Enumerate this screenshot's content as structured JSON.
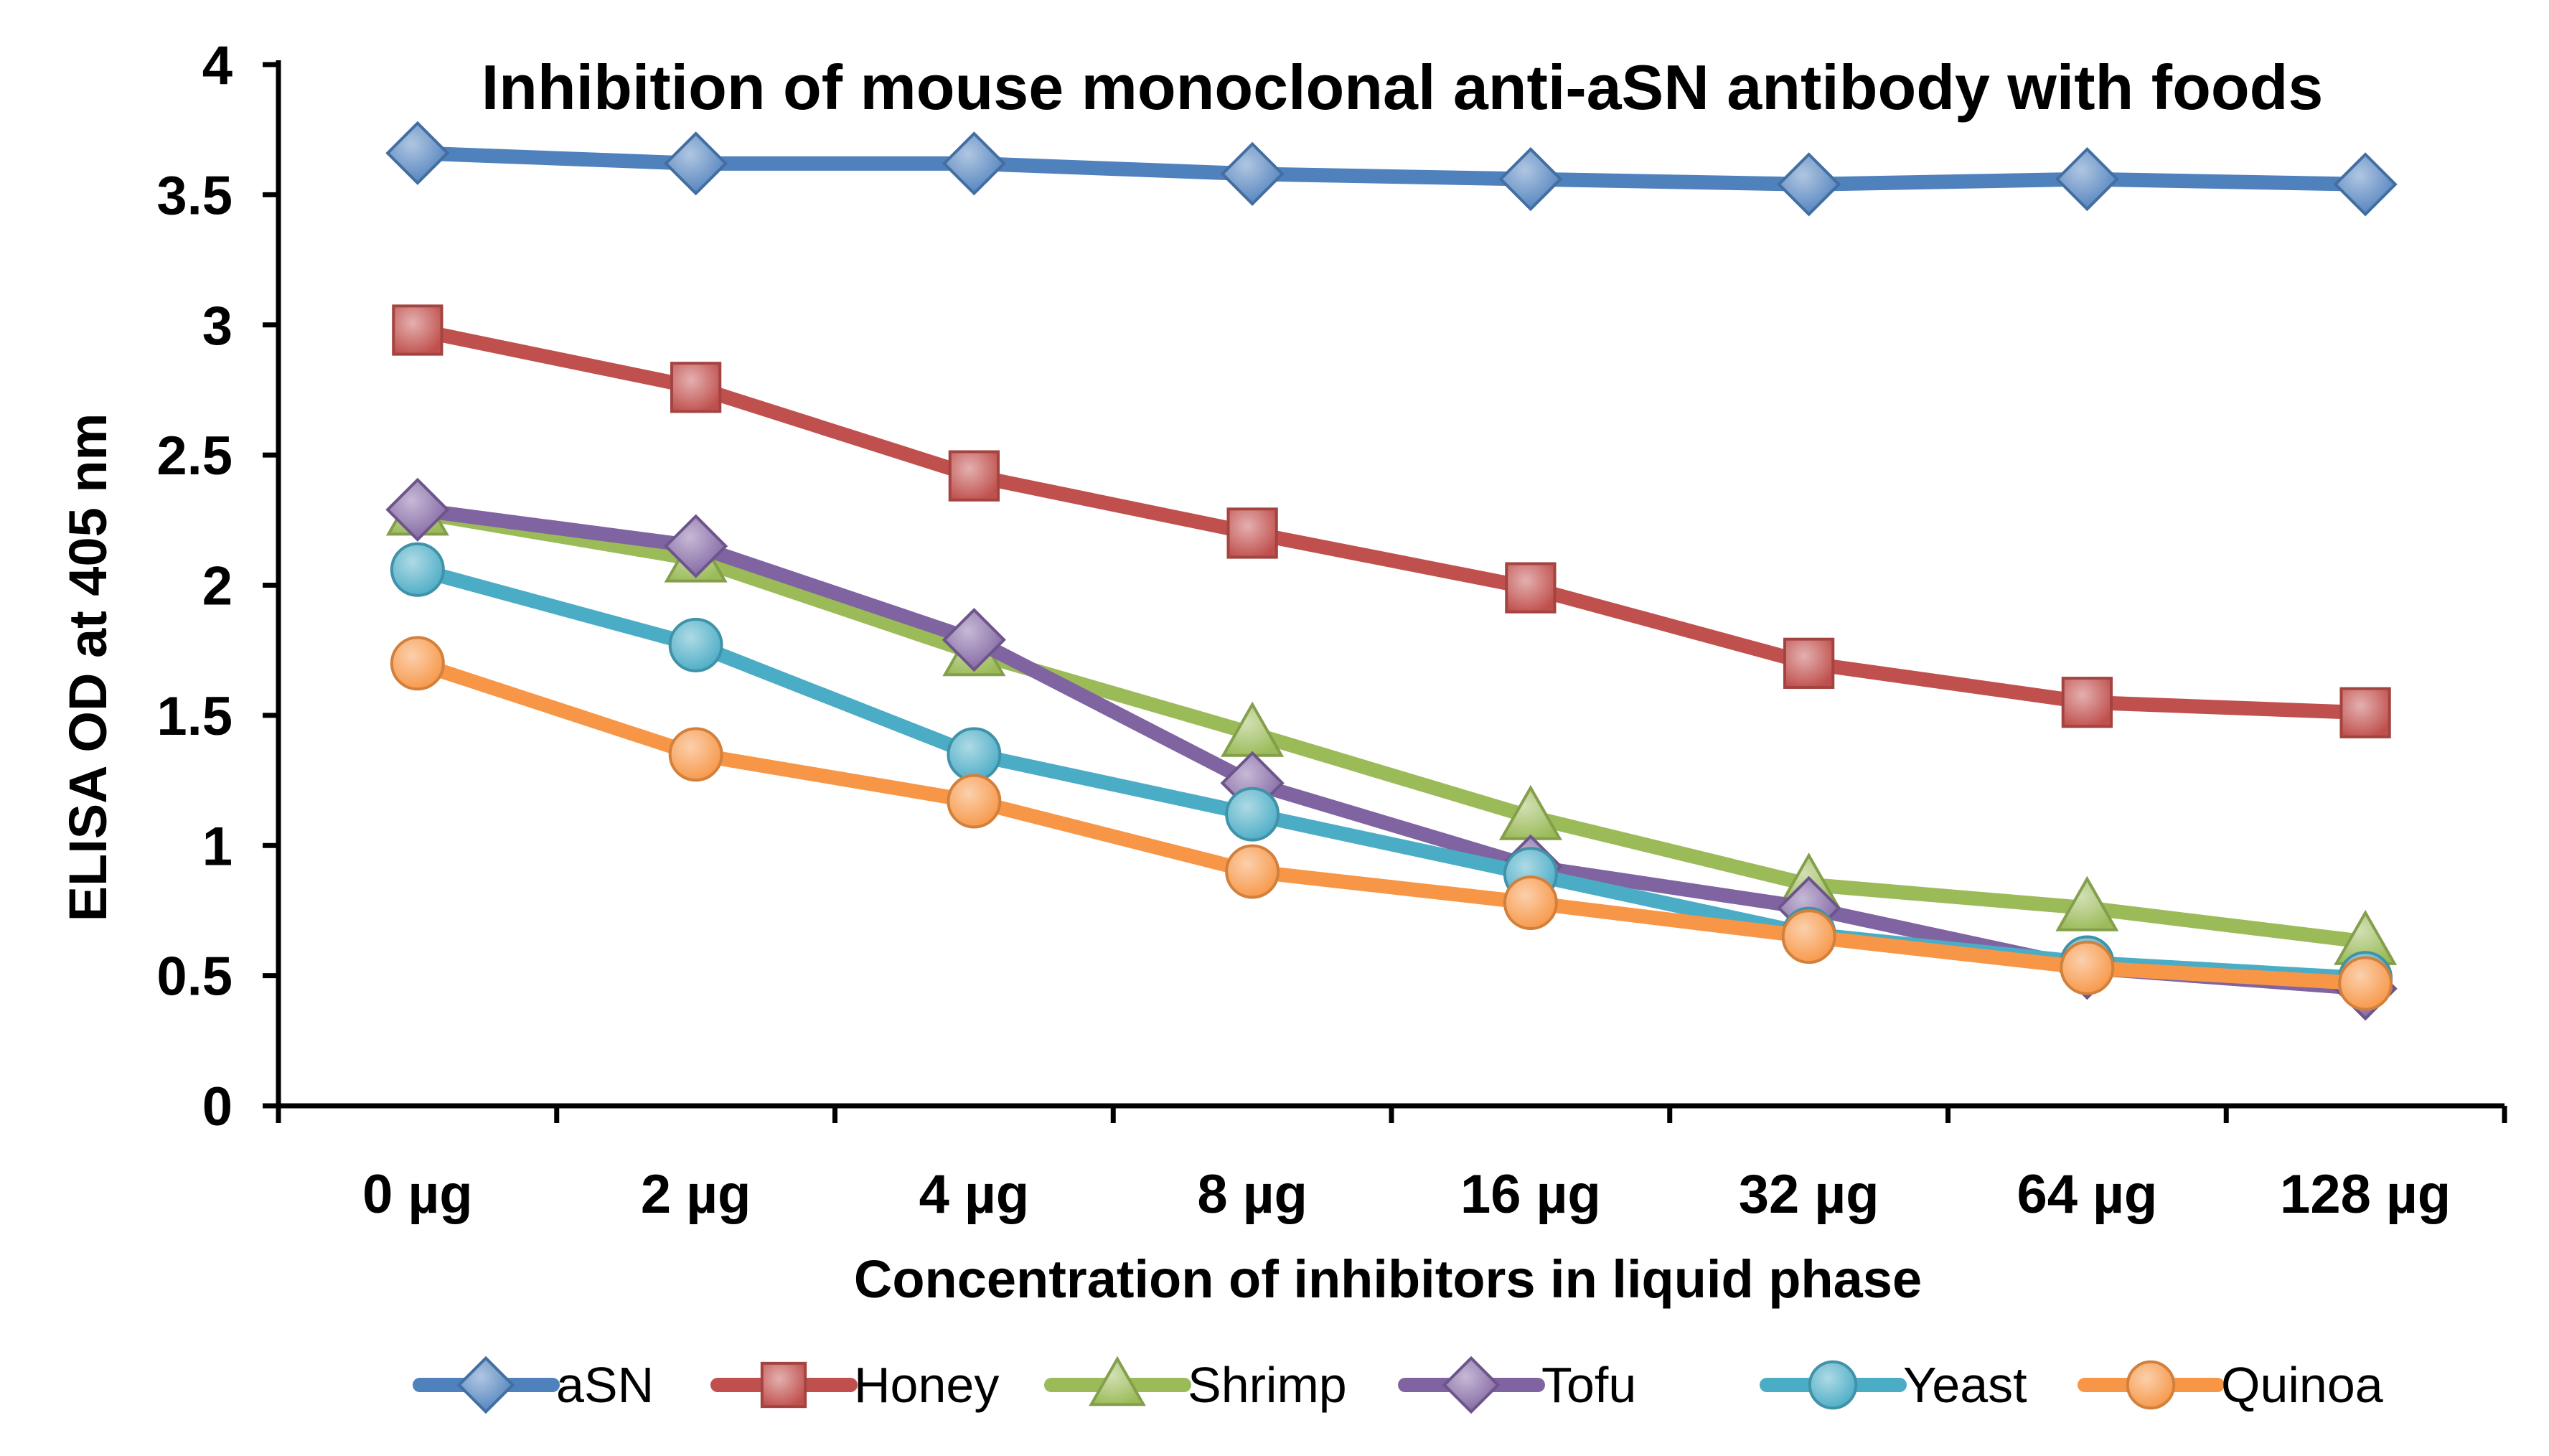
{
  "chart_data": {
    "type": "line",
    "title": "Inhibition of mouse monoclonal anti-aSN antibody with foods",
    "xlabel": "Concentration of inhibitors in liquid phase",
    "ylabel": "ELISA OD at 405 nm",
    "categories": [
      "0 µg",
      "2 µg",
      "4 µg",
      "8 µg",
      "16 µg",
      "32 µg",
      "64 µg",
      "128 µg"
    ],
    "ylim": [
      0,
      4
    ],
    "yticks": [
      0,
      0.5,
      1,
      1.5,
      2,
      2.5,
      3,
      3.5,
      4
    ],
    "ytick_labels": [
      "0",
      "0.5",
      "1",
      "1.5",
      "2",
      "2.5",
      "3",
      "3.5",
      "4"
    ],
    "grid": false,
    "legend_position": "bottom",
    "series": [
      {
        "name": "aSN",
        "marker": "diamond",
        "color": "#4f81bd",
        "values": [
          3.66,
          3.62,
          3.62,
          3.58,
          3.56,
          3.54,
          3.56,
          3.54
        ]
      },
      {
        "name": "Honey",
        "marker": "square",
        "color": "#c0504d",
        "values": [
          2.98,
          2.76,
          2.42,
          2.2,
          1.99,
          1.7,
          1.55,
          1.51
        ]
      },
      {
        "name": "Shrimp",
        "marker": "triangle",
        "color": "#9bbb59",
        "values": [
          2.28,
          2.1,
          1.74,
          1.43,
          1.11,
          0.85,
          0.76,
          0.63
        ]
      },
      {
        "name": "Tofu",
        "marker": "diamond",
        "color": "#8064a2",
        "values": [
          2.29,
          2.15,
          1.79,
          1.24,
          0.92,
          0.76,
          0.53,
          0.45
        ]
      },
      {
        "name": "Yeast",
        "marker": "circle",
        "color": "#4bacc6",
        "values": [
          2.06,
          1.77,
          1.35,
          1.12,
          0.89,
          0.66,
          0.55,
          0.49
        ]
      },
      {
        "name": "Quinoa",
        "marker": "circle",
        "color": "#f79646",
        "values": [
          1.7,
          1.35,
          1.17,
          0.9,
          0.78,
          0.65,
          0.53,
          0.47
        ]
      }
    ]
  }
}
